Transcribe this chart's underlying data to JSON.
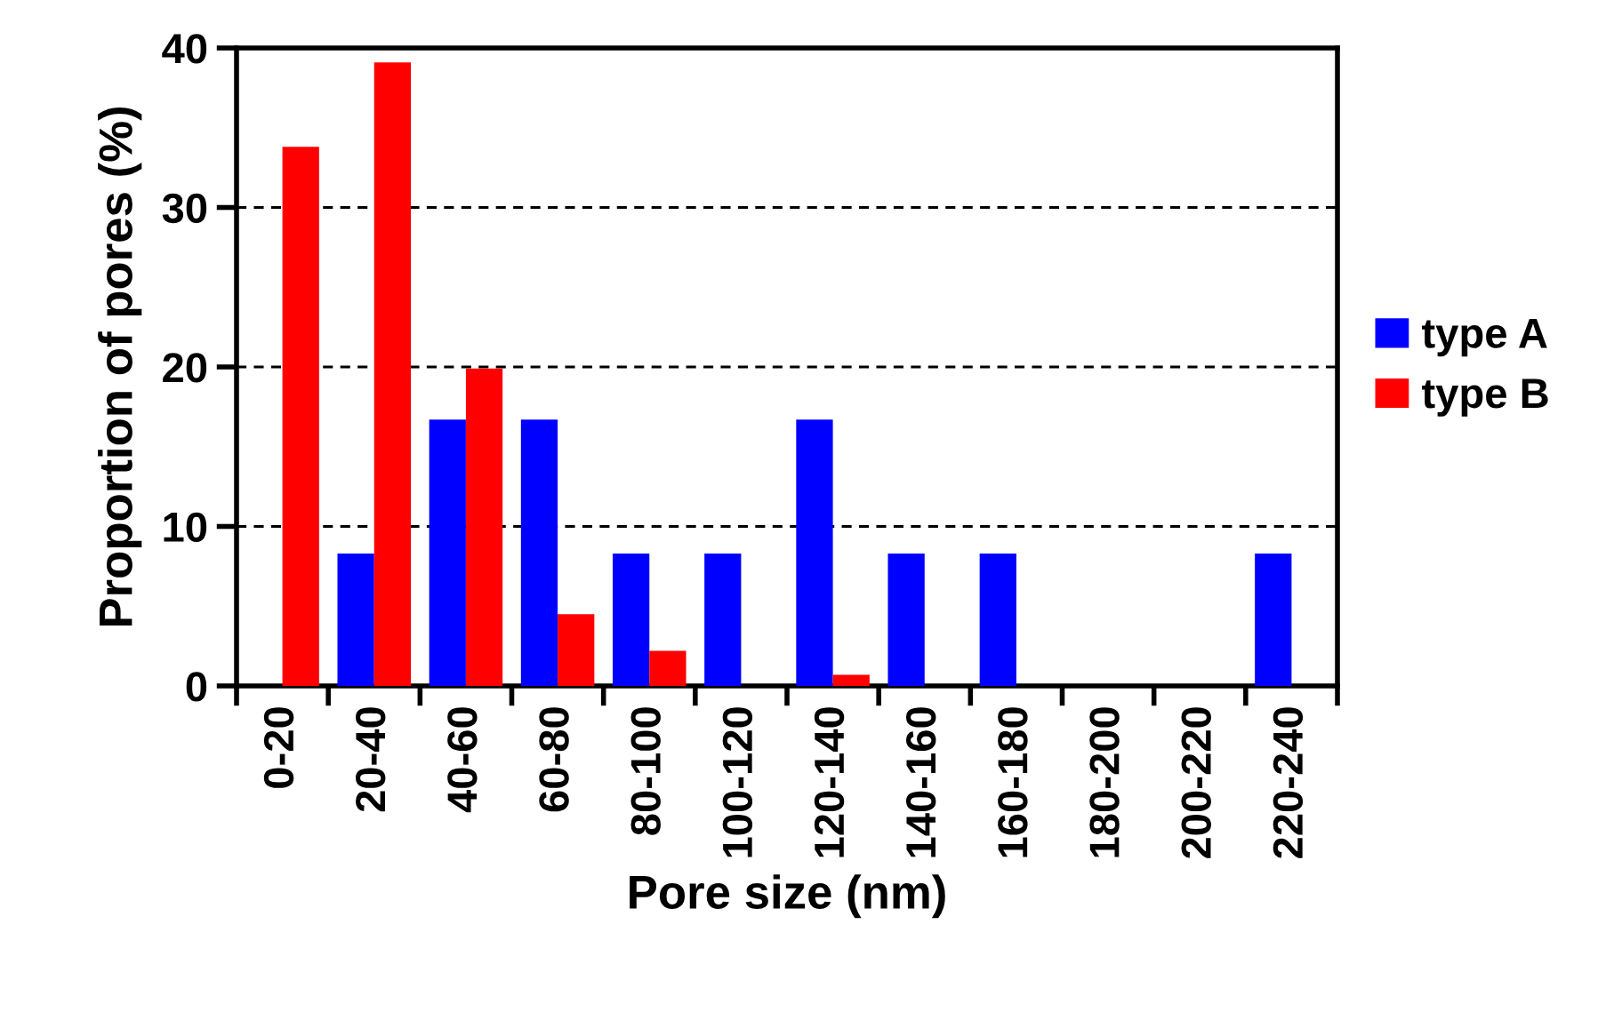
{
  "chart_data": {
    "type": "bar",
    "xlabel": "Pore size (nm)",
    "ylabel": "Proportion of pores (%)",
    "categories": [
      "0-20",
      "20-40",
      "40-60",
      "60-80",
      "80-100",
      "100-120",
      "120-140",
      "140-160",
      "160-180",
      "180-200",
      "200-220",
      "220-240"
    ],
    "series": [
      {
        "name": "type A",
        "color": "#0000ff",
        "values": [
          0,
          8.3,
          16.7,
          16.7,
          8.3,
          8.3,
          16.7,
          8.3,
          8.3,
          0,
          0,
          8.3
        ]
      },
      {
        "name": "type B",
        "color": "#ff0000",
        "values": [
          33.8,
          39.1,
          19.9,
          4.5,
          2.2,
          0,
          0.7,
          0,
          0,
          0,
          0,
          0
        ]
      }
    ],
    "ylim": [
      0,
      40
    ],
    "yticks": [
      0,
      10,
      20,
      30,
      40
    ],
    "grid": "y",
    "legend": "right"
  }
}
